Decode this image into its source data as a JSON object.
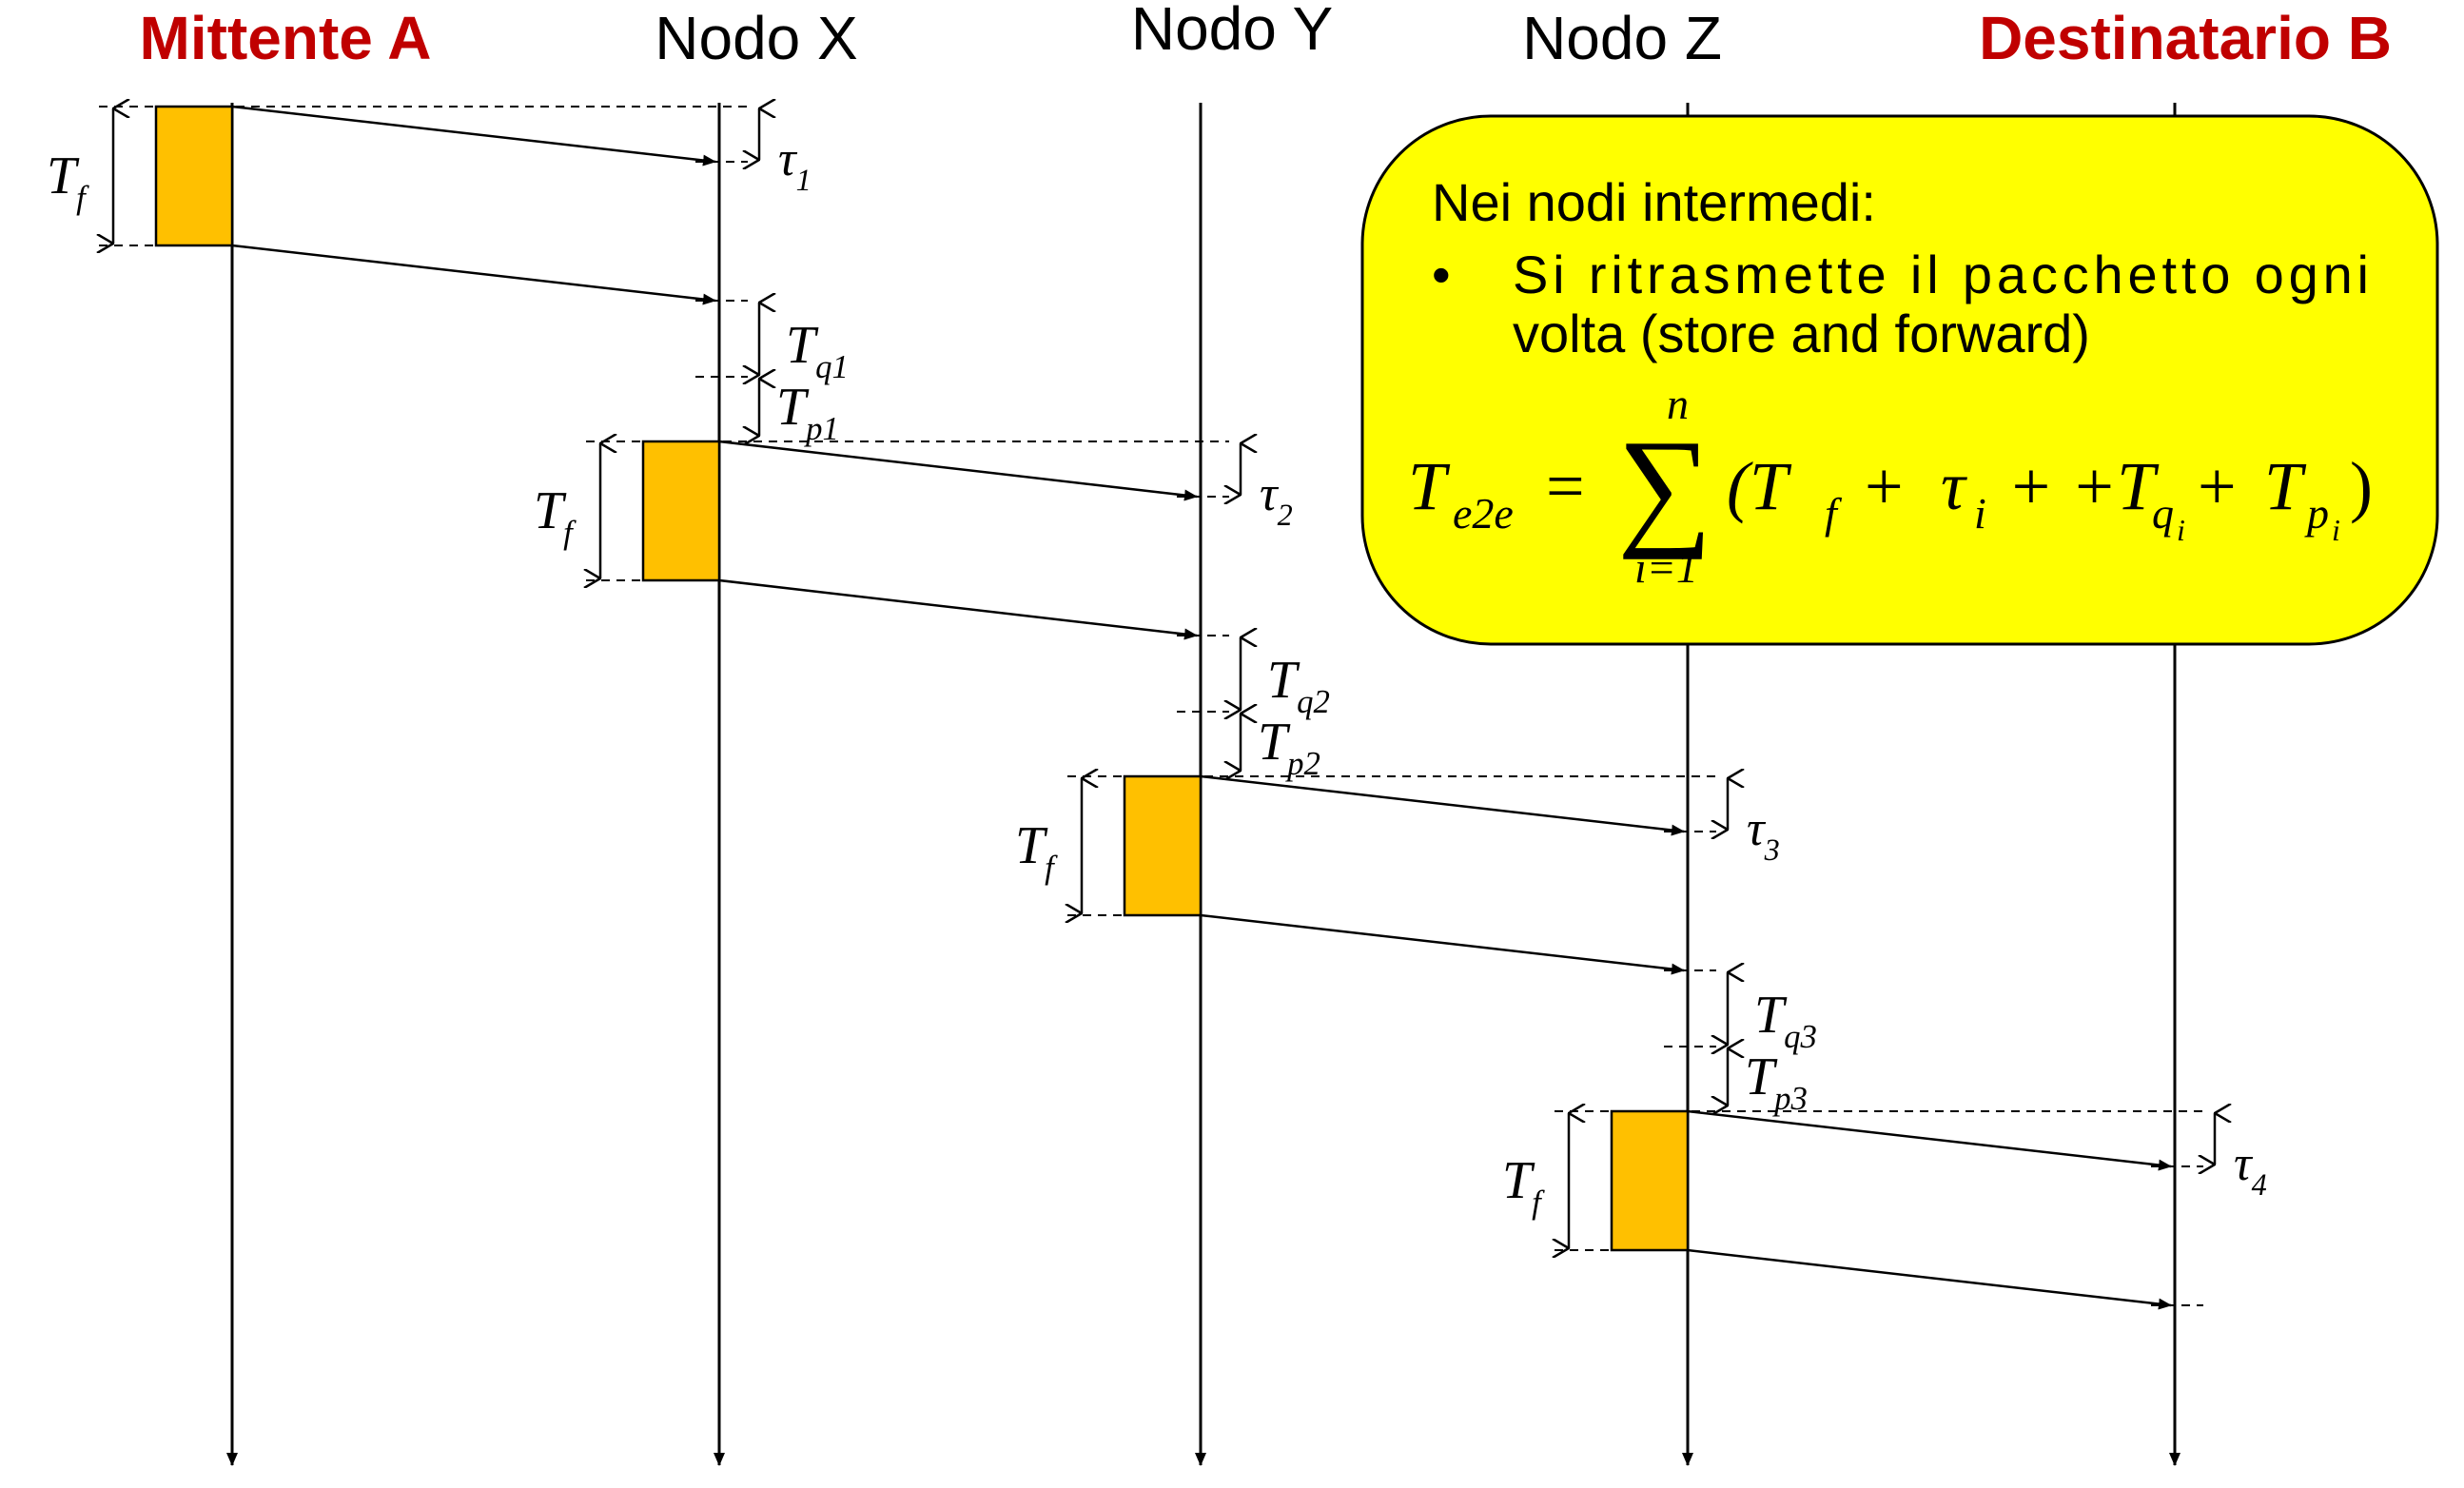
{
  "nodes": [
    {
      "id": "A",
      "label": "Mittente A",
      "color": "#c00000",
      "bold": true
    },
    {
      "id": "X",
      "label": "Nodo X",
      "color": "#000000",
      "bold": false
    },
    {
      "id": "Y",
      "label": "Nodo Y",
      "color": "#000000",
      "bold": false
    },
    {
      "id": "Z",
      "label": "Nodo Z",
      "color": "#000000",
      "bold": false
    },
    {
      "id": "B",
      "label": "Destinatario B",
      "color": "#c00000",
      "bold": true
    }
  ],
  "hops": [
    {
      "from": "A",
      "to": "X",
      "frame_label": {
        "base": "T",
        "sub": "f"
      },
      "tau_label": {
        "base": "τ",
        "sub": "1"
      },
      "queue_label": {
        "base": "T",
        "sub": "q1"
      },
      "proc_label": {
        "base": "T",
        "sub": "p1"
      }
    },
    {
      "from": "X",
      "to": "Y",
      "frame_label": {
        "base": "T",
        "sub": "f"
      },
      "tau_label": {
        "base": "τ",
        "sub": "2"
      },
      "queue_label": {
        "base": "T",
        "sub": "q2"
      },
      "proc_label": {
        "base": "T",
        "sub": "p2"
      }
    },
    {
      "from": "Y",
      "to": "Z",
      "frame_label": {
        "base": "T",
        "sub": "f"
      },
      "tau_label": {
        "base": "τ",
        "sub": "3"
      },
      "queue_label": {
        "base": "T",
        "sub": "q3"
      },
      "proc_label": {
        "base": "T",
        "sub": "p3"
      }
    },
    {
      "from": "Z",
      "to": "B",
      "frame_label": {
        "base": "T",
        "sub": "f"
      },
      "tau_label": {
        "base": "τ",
        "sub": "4"
      },
      "queue_label": null,
      "proc_label": null
    }
  ],
  "callout": {
    "heading": "Nei nodi intermedi:",
    "bullet": "•",
    "bullet_line1": "Si ritrasmette il pacchetto ogni",
    "bullet_line2": "volta (store and forward)",
    "formula": {
      "lhs": "T",
      "lhs_sub": "e2e",
      "equals": "=",
      "sum": "∑",
      "upper": "n",
      "lower": "i=1",
      "rhs": "(T",
      "t1_sub": "f",
      "plus1": "+",
      "tau": "τ",
      "tau_sub": "i",
      "plus2": "+ +T",
      "q_sub": "q",
      "q_subsub": "i",
      "plus3": "+",
      "p": "T",
      "p_sub": "p",
      "p_subsub": "i",
      "close": ")"
    },
    "fill": "#ffff00"
  },
  "colors": {
    "frame_fill": "#ffc000",
    "line": "#000000",
    "callout_fill": "#ffff00",
    "red": "#c00000"
  }
}
